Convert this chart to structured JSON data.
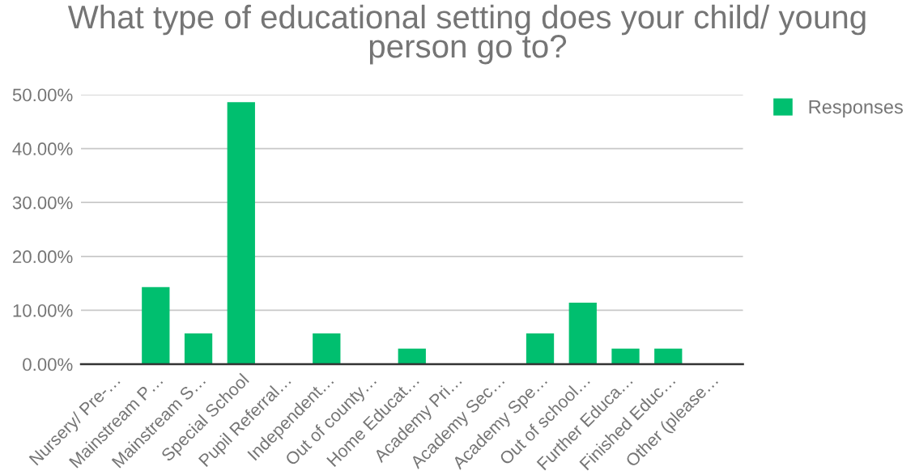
{
  "chart_data": {
    "type": "bar",
    "title": "What type of educational setting does your child/ young person go to?",
    "categories": [
      "Nursery/ Pre-…",
      "Mainstream P…",
      "Mainstream S…",
      "Special School",
      "Pupil Referral…",
      "Independent…",
      "Out of county…",
      "Home Educat…",
      "Academy Pri…",
      "Academy Sec…",
      "Academy Spe…",
      "Out of school…",
      "Further Educa…",
      "Finished Educ…",
      "Other (please…"
    ],
    "series": [
      {
        "name": "Responses",
        "color": "#00bf6f",
        "values": [
          0,
          14.3,
          5.7,
          48.6,
          0,
          5.7,
          0,
          2.9,
          0,
          0,
          5.7,
          11.4,
          2.9,
          2.9,
          0
        ]
      }
    ],
    "ylim": [
      0,
      50
    ],
    "yticks": [
      {
        "value": 0,
        "label": "0.00%"
      },
      {
        "value": 10,
        "label": "10.00%"
      },
      {
        "value": 20,
        "label": "20.00%"
      },
      {
        "value": 30,
        "label": "30.00%"
      },
      {
        "value": 40,
        "label": "40.00%"
      },
      {
        "value": 50,
        "label": "50.00%"
      }
    ],
    "grid": "y",
    "legend": "top right"
  }
}
